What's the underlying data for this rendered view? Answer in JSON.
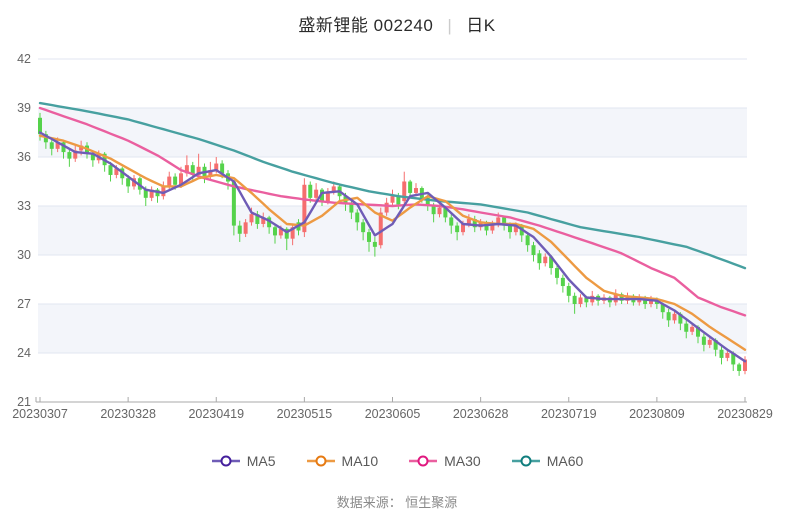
{
  "title": {
    "name_code": "盛新锂能 002240",
    "separator": "|",
    "period": "日K"
  },
  "footer": {
    "source_label": "数据来源： 恒生聚源"
  },
  "colors": {
    "up_candle": "#f56e6e",
    "down_candle": "#55d24b",
    "grid_line": "#e2e6f0",
    "band_fill": "#f3f5fa",
    "plot_bg": "#ffffff",
    "axis_line": "#a8a8a8",
    "axis_text": "#666666",
    "title_text": "#2b2b2b",
    "separator_color": "#cccccc",
    "legend_text": "#595959",
    "footer_text": "#8a8a8a"
  },
  "legend": [
    {
      "label": "MA5",
      "line_color": "#6f5cb6",
      "ring_color": "#45209d"
    },
    {
      "label": "MA10",
      "line_color": "#ed9a43",
      "ring_color": "#e67a12"
    },
    {
      "label": "MA30",
      "line_color": "#ea5f9f",
      "ring_color": "#e0187f"
    },
    {
      "label": "MA60",
      "line_color": "#47a0a0",
      "ring_color": "#107e7e"
    }
  ],
  "chart_data": {
    "type": "candlestick",
    "title": "盛新锂能 002240 | 日K",
    "legend_position": "bottom",
    "grid": true,
    "y_axis": {
      "min": 21,
      "max": 42,
      "ticks": [
        21,
        24,
        27,
        30,
        33,
        36,
        39,
        42
      ]
    },
    "x_axis": {
      "tick_labels": [
        "20230307",
        "20230328",
        "20230419",
        "20230515",
        "20230605",
        "20230628",
        "20230719",
        "20230809",
        "20230829"
      ],
      "tick_indices": [
        0,
        15,
        30,
        45,
        60,
        75,
        90,
        105,
        120
      ]
    },
    "candles_format": [
      "open",
      "high",
      "low",
      "close"
    ],
    "candles": [
      [
        38.4,
        38.7,
        37.0,
        37.4
      ],
      [
        37.4,
        37.6,
        36.5,
        36.9
      ],
      [
        36.9,
        37.1,
        36.1,
        36.5
      ],
      [
        36.5,
        37.2,
        36.3,
        36.9
      ],
      [
        36.9,
        37.0,
        35.9,
        36.3
      ],
      [
        36.3,
        36.5,
        35.4,
        35.9
      ],
      [
        35.9,
        36.7,
        35.7,
        36.4
      ],
      [
        36.4,
        37.0,
        36.1,
        36.7
      ],
      [
        36.7,
        36.9,
        35.9,
        36.2
      ],
      [
        36.2,
        36.4,
        35.4,
        35.8
      ],
      [
        35.8,
        36.4,
        35.6,
        36.2
      ],
      [
        36.2,
        36.3,
        35.1,
        35.5
      ],
      [
        35.5,
        35.7,
        34.5,
        34.9
      ],
      [
        34.9,
        35.5,
        34.7,
        35.3
      ],
      [
        35.3,
        35.4,
        34.3,
        34.7
      ],
      [
        34.7,
        34.9,
        33.8,
        34.2
      ],
      [
        34.2,
        34.9,
        34.0,
        34.7
      ],
      [
        34.7,
        34.8,
        33.7,
        34.0
      ],
      [
        34.0,
        34.2,
        33.0,
        33.5
      ],
      [
        33.5,
        34.2,
        33.3,
        34.0
      ],
      [
        34.0,
        34.1,
        33.2,
        33.6
      ],
      [
        33.6,
        34.5,
        33.4,
        34.2
      ],
      [
        34.2,
        35.1,
        34.0,
        34.8
      ],
      [
        34.8,
        35.0,
        34.0,
        34.3
      ],
      [
        34.3,
        35.4,
        34.1,
        35.0
      ],
      [
        35.0,
        36.1,
        34.8,
        35.5
      ],
      [
        35.5,
        35.7,
        34.6,
        34.9
      ],
      [
        34.9,
        36.2,
        34.7,
        35.4
      ],
      [
        35.4,
        35.6,
        34.4,
        34.8
      ],
      [
        34.8,
        35.7,
        34.6,
        35.2
      ],
      [
        35.2,
        36.0,
        35.0,
        35.6
      ],
      [
        35.6,
        35.8,
        34.7,
        35.0
      ],
      [
        35.0,
        35.2,
        34.0,
        34.5
      ],
      [
        34.5,
        34.6,
        31.2,
        31.8
      ],
      [
        31.8,
        32.1,
        30.8,
        31.3
      ],
      [
        31.3,
        32.2,
        31.1,
        32.0
      ],
      [
        32.0,
        32.9,
        31.8,
        32.5
      ],
      [
        32.5,
        32.7,
        31.6,
        31.9
      ],
      [
        31.9,
        32.6,
        31.7,
        32.3
      ],
      [
        32.3,
        32.4,
        31.3,
        31.7
      ],
      [
        31.7,
        31.9,
        30.7,
        31.2
      ],
      [
        31.2,
        31.8,
        31.0,
        31.6
      ],
      [
        31.6,
        31.7,
        30.3,
        31.0
      ],
      [
        31.0,
        31.9,
        30.6,
        31.7
      ],
      [
        32.0,
        32.2,
        31.2,
        31.5
      ],
      [
        31.4,
        34.7,
        31.1,
        34.3
      ],
      [
        34.3,
        34.5,
        33.2,
        33.5
      ],
      [
        33.5,
        34.4,
        33.3,
        34.0
      ],
      [
        34.0,
        34.1,
        33.0,
        33.3
      ],
      [
        33.3,
        34.1,
        33.1,
        33.9
      ],
      [
        33.9,
        34.5,
        33.7,
        34.2
      ],
      [
        34.2,
        34.3,
        33.3,
        33.6
      ],
      [
        33.6,
        33.8,
        32.7,
        33.1
      ],
      [
        33.1,
        33.3,
        32.2,
        32.6
      ],
      [
        32.6,
        32.8,
        31.5,
        32.0
      ],
      [
        32.0,
        32.2,
        30.9,
        31.4
      ],
      [
        31.4,
        31.6,
        30.2,
        30.8
      ],
      [
        30.8,
        31.1,
        29.9,
        30.5
      ],
      [
        30.6,
        32.9,
        30.4,
        32.6
      ],
      [
        32.6,
        33.5,
        32.4,
        33.2
      ],
      [
        33.2,
        34.0,
        33.0,
        33.6
      ],
      [
        33.6,
        33.8,
        32.8,
        33.1
      ],
      [
        33.3,
        35.1,
        33.1,
        34.5
      ],
      [
        34.5,
        34.6,
        33.5,
        33.8
      ],
      [
        33.8,
        34.4,
        33.6,
        34.1
      ],
      [
        34.1,
        34.2,
        33.2,
        33.5
      ],
      [
        33.5,
        33.7,
        32.7,
        33.0
      ],
      [
        33.0,
        33.2,
        32.0,
        32.5
      ],
      [
        32.5,
        33.1,
        32.3,
        32.9
      ],
      [
        32.9,
        33.0,
        32.0,
        32.3
      ],
      [
        32.3,
        32.5,
        31.3,
        31.8
      ],
      [
        31.8,
        32.0,
        30.9,
        31.4
      ],
      [
        31.4,
        32.1,
        31.2,
        31.9
      ],
      [
        31.9,
        32.5,
        31.7,
        32.2
      ],
      [
        32.2,
        32.4,
        31.4,
        31.7
      ],
      [
        31.7,
        32.2,
        31.5,
        32.0
      ],
      [
        32.0,
        32.1,
        31.2,
        31.5
      ],
      [
        31.5,
        32.1,
        31.3,
        31.9
      ],
      [
        31.9,
        32.6,
        31.7,
        32.3
      ],
      [
        32.3,
        32.4,
        31.5,
        31.8
      ],
      [
        31.8,
        32.0,
        31.0,
        31.4
      ],
      [
        31.4,
        32.0,
        31.2,
        31.8
      ],
      [
        31.8,
        31.9,
        30.8,
        31.2
      ],
      [
        31.2,
        31.4,
        30.2,
        30.6
      ],
      [
        30.6,
        30.8,
        29.6,
        30.0
      ],
      [
        30.1,
        30.3,
        29.1,
        29.5
      ],
      [
        29.5,
        30.1,
        29.3,
        29.9
      ],
      [
        29.9,
        30.0,
        28.8,
        29.2
      ],
      [
        29.2,
        29.4,
        28.2,
        28.6
      ],
      [
        28.6,
        28.8,
        27.7,
        28.1
      ],
      [
        28.1,
        28.3,
        27.1,
        27.5
      ],
      [
        27.5,
        27.7,
        26.4,
        27.0
      ],
      [
        27.0,
        27.6,
        26.8,
        27.4
      ],
      [
        27.4,
        27.5,
        26.8,
        27.1
      ],
      [
        27.1,
        27.8,
        26.9,
        27.5
      ],
      [
        27.5,
        27.6,
        26.9,
        27.2
      ],
      [
        27.2,
        27.6,
        27.0,
        27.4
      ],
      [
        27.4,
        27.5,
        26.8,
        27.1
      ],
      [
        27.1,
        27.9,
        26.9,
        27.6
      ],
      [
        27.6,
        27.7,
        27.0,
        27.2
      ],
      [
        27.2,
        27.7,
        27.0,
        27.5
      ],
      [
        27.5,
        27.6,
        26.9,
        27.1
      ],
      [
        27.1,
        27.6,
        26.9,
        27.4
      ],
      [
        27.4,
        27.5,
        26.7,
        27.0
      ],
      [
        27.0,
        27.5,
        26.8,
        27.3
      ],
      [
        27.3,
        27.4,
        26.7,
        27.0
      ],
      [
        27.0,
        27.1,
        26.1,
        26.5
      ],
      [
        26.5,
        26.7,
        25.6,
        26.0
      ],
      [
        26.0,
        26.6,
        25.8,
        26.4
      ],
      [
        26.4,
        26.5,
        25.4,
        25.8
      ],
      [
        25.8,
        26.0,
        24.9,
        25.3
      ],
      [
        25.3,
        25.8,
        25.1,
        25.6
      ],
      [
        25.6,
        25.7,
        24.6,
        25.0
      ],
      [
        25.0,
        25.2,
        24.1,
        24.5
      ],
      [
        24.5,
        25.0,
        24.3,
        24.8
      ],
      [
        24.8,
        24.9,
        23.8,
        24.2
      ],
      [
        24.2,
        24.4,
        23.3,
        23.7
      ],
      [
        23.7,
        24.2,
        23.5,
        24.0
      ],
      [
        24.0,
        24.1,
        22.9,
        23.3
      ],
      [
        23.3,
        23.4,
        22.6,
        22.9
      ],
      [
        22.9,
        23.8,
        22.7,
        23.6
      ]
    ],
    "ma_series": [
      {
        "name": "MA5",
        "color": "#6f5cb6",
        "points": [
          [
            0,
            37.5
          ],
          [
            3,
            36.9
          ],
          [
            6,
            36.3
          ],
          [
            9,
            36.2
          ],
          [
            12,
            35.6
          ],
          [
            15,
            34.8
          ],
          [
            18,
            34.0
          ],
          [
            21,
            33.8
          ],
          [
            24,
            34.3
          ],
          [
            27,
            35.0
          ],
          [
            30,
            35.2
          ],
          [
            33,
            34.5
          ],
          [
            36,
            32.6
          ],
          [
            39,
            32.1
          ],
          [
            42,
            31.4
          ],
          [
            45,
            32.0
          ],
          [
            48,
            33.8
          ],
          [
            51,
            33.9
          ],
          [
            54,
            33.1
          ],
          [
            57,
            31.2
          ],
          [
            60,
            31.9
          ],
          [
            63,
            33.6
          ],
          [
            66,
            33.8
          ],
          [
            69,
            32.9
          ],
          [
            72,
            31.9
          ],
          [
            75,
            31.8
          ],
          [
            78,
            31.9
          ],
          [
            81,
            31.8
          ],
          [
            84,
            31.1
          ],
          [
            87,
            29.9
          ],
          [
            90,
            28.5
          ],
          [
            93,
            27.4
          ],
          [
            96,
            27.3
          ],
          [
            99,
            27.3
          ],
          [
            102,
            27.3
          ],
          [
            105,
            27.2
          ],
          [
            108,
            26.6
          ],
          [
            111,
            25.8
          ],
          [
            114,
            25.0
          ],
          [
            117,
            24.2
          ],
          [
            120,
            23.5
          ]
        ]
      },
      {
        "name": "MA10",
        "color": "#ed9a43",
        "points": [
          [
            0,
            37.3
          ],
          [
            4,
            37.0
          ],
          [
            8,
            36.5
          ],
          [
            12,
            35.9
          ],
          [
            15,
            35.3
          ],
          [
            18,
            34.7
          ],
          [
            21,
            34.2
          ],
          [
            24,
            34.2
          ],
          [
            27,
            34.7
          ],
          [
            30,
            34.9
          ],
          [
            33,
            34.7
          ],
          [
            36,
            33.8
          ],
          [
            39,
            32.8
          ],
          [
            42,
            31.9
          ],
          [
            45,
            31.8
          ],
          [
            48,
            32.4
          ],
          [
            51,
            33.3
          ],
          [
            54,
            33.5
          ],
          [
            57,
            32.6
          ],
          [
            60,
            32.1
          ],
          [
            63,
            32.9
          ],
          [
            66,
            33.6
          ],
          [
            69,
            33.3
          ],
          [
            72,
            32.4
          ],
          [
            75,
            32.0
          ],
          [
            78,
            31.9
          ],
          [
            81,
            31.9
          ],
          [
            84,
            31.6
          ],
          [
            87,
            30.8
          ],
          [
            90,
            29.7
          ],
          [
            93,
            28.6
          ],
          [
            96,
            27.8
          ],
          [
            99,
            27.5
          ],
          [
            102,
            27.4
          ],
          [
            105,
            27.3
          ],
          [
            108,
            27.0
          ],
          [
            111,
            26.4
          ],
          [
            114,
            25.6
          ],
          [
            117,
            24.9
          ],
          [
            120,
            24.2
          ]
        ]
      },
      {
        "name": "MA30",
        "color": "#ea5f9f",
        "points": [
          [
            0,
            39.0
          ],
          [
            8,
            38.0
          ],
          [
            15,
            37.0
          ],
          [
            20,
            36.1
          ],
          [
            24,
            35.2
          ],
          [
            28,
            34.7
          ],
          [
            33,
            34.2
          ],
          [
            37,
            33.9
          ],
          [
            41,
            33.6
          ],
          [
            45,
            33.4
          ],
          [
            50,
            33.2
          ],
          [
            55,
            33.1
          ],
          [
            60,
            33.0
          ],
          [
            64,
            33.1
          ],
          [
            68,
            33.0
          ],
          [
            72,
            32.8
          ],
          [
            75,
            32.6
          ],
          [
            80,
            32.3
          ],
          [
            85,
            31.8
          ],
          [
            90,
            31.2
          ],
          [
            95,
            30.6
          ],
          [
            99,
            30.1
          ],
          [
            104,
            29.2
          ],
          [
            108,
            28.6
          ],
          [
            112,
            27.4
          ],
          [
            116,
            26.8
          ],
          [
            120,
            26.3
          ]
        ]
      },
      {
        "name": "MA60",
        "color": "#47a0a0",
        "points": [
          [
            0,
            39.3
          ],
          [
            8,
            38.8
          ],
          [
            15,
            38.3
          ],
          [
            21,
            37.7
          ],
          [
            27,
            37.1
          ],
          [
            33,
            36.4
          ],
          [
            38,
            35.7
          ],
          [
            43,
            35.1
          ],
          [
            50,
            34.4
          ],
          [
            56,
            33.9
          ],
          [
            61,
            33.6
          ],
          [
            68,
            33.3
          ],
          [
            75,
            33.1
          ],
          [
            83,
            32.6
          ],
          [
            88,
            32.1
          ],
          [
            92,
            31.7
          ],
          [
            97,
            31.4
          ],
          [
            102,
            31.1
          ],
          [
            106,
            30.8
          ],
          [
            110,
            30.5
          ],
          [
            114,
            30.0
          ],
          [
            117,
            29.6
          ],
          [
            120,
            29.2
          ]
        ]
      }
    ]
  }
}
